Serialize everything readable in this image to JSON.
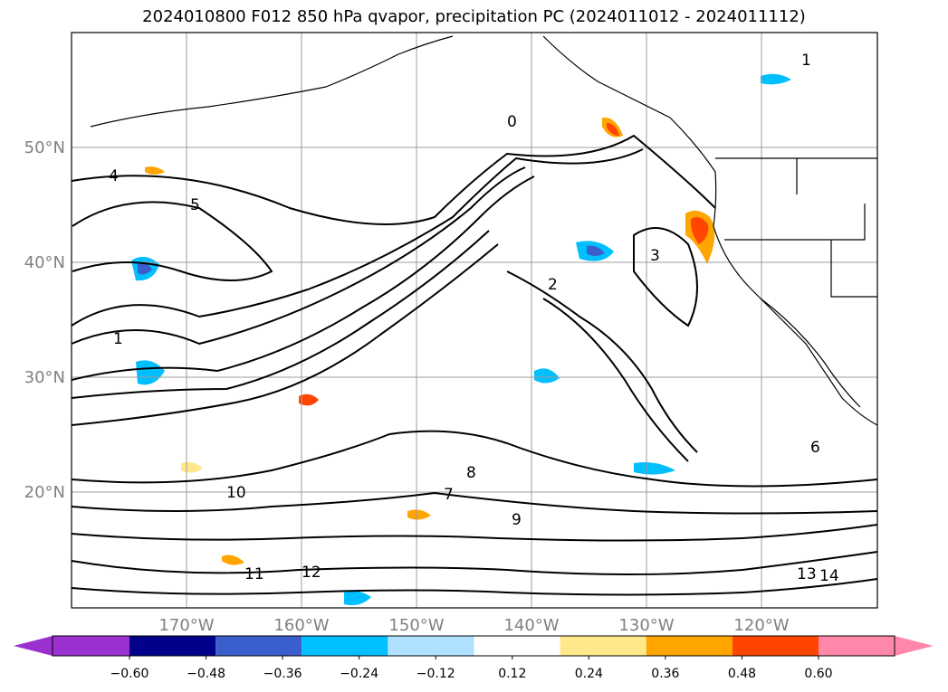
{
  "title": "2024010800 F012 850 hPa qvapor, precipitation PC (2024011012 - 2024011112)",
  "map": {
    "lat_labels": [
      "50°N",
      "40°N",
      "30°N",
      "20°N"
    ],
    "lon_labels": [
      "170°W",
      "160°W",
      "150°W",
      "140°W",
      "130°W",
      "120°W"
    ],
    "contour_labels": [
      "1",
      "2",
      "3",
      "4",
      "5",
      "6",
      "7",
      "8",
      "9",
      "10",
      "11",
      "12",
      "13",
      "14",
      "0"
    ]
  },
  "colorbar": {
    "ticks": [
      "−0.60",
      "−0.48",
      "−0.36",
      "−0.24",
      "−0.12",
      "0.12",
      "0.24",
      "0.36",
      "0.48",
      "0.60"
    ],
    "colors": [
      "#9b30d0",
      "#00008b",
      "#3a5fcd",
      "#00bfff",
      "#b0e2ff",
      "#ffffff",
      "#ffe88a",
      "#ffa500",
      "#ff4500",
      "#b22222",
      "#ff88aa"
    ]
  }
}
